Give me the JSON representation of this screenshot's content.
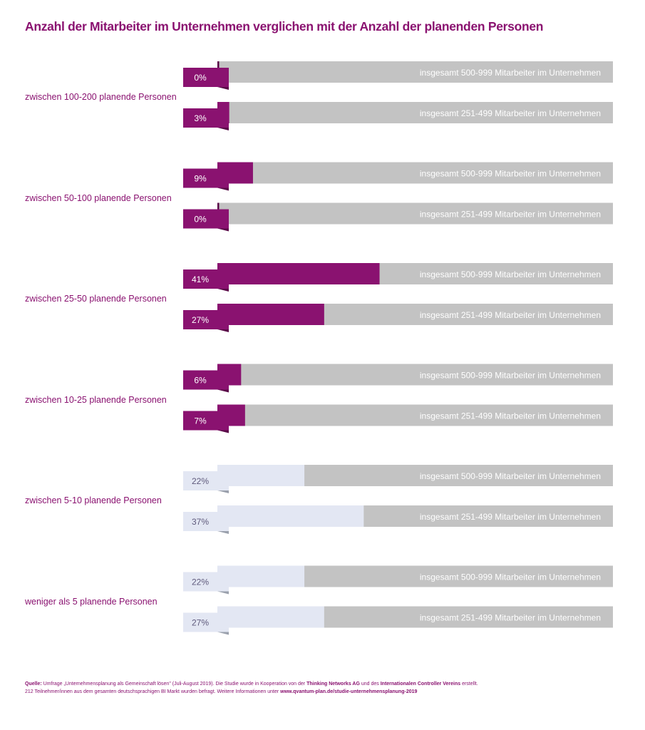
{
  "chart_data": {
    "type": "bar",
    "title": "Anzahl der Mitarbeiter im Unternehmen verglichen mit der Anzahl der planenden Personen",
    "xlim": [
      0,
      100
    ],
    "colors": {
      "highlight": "#8a1270",
      "highlight_dark": "#5a0a48",
      "muted": "#e3e7f3",
      "muted_fold": "#9aa0ac",
      "track": "#c3c3c3",
      "muted_text": "#5f5a7c"
    },
    "groups": [
      {
        "label": "zwischen 100-200 planende Personen",
        "highlight": true,
        "bars": [
          {
            "series": "insgesamt 500-999 Mitarbeiter im Unternehmen",
            "value": 0,
            "label": "0%"
          },
          {
            "series": "insgesamt 251-499 Mitarbeiter im Unternehmen",
            "value": 3,
            "label": "3%"
          }
        ]
      },
      {
        "label": "zwischen 50-100 planende Personen",
        "highlight": true,
        "bars": [
          {
            "series": "insgesamt 500-999 Mitarbeiter im Unternehmen",
            "value": 9,
            "label": "9%"
          },
          {
            "series": "insgesamt 251-499 Mitarbeiter im Unternehmen",
            "value": 0,
            "label": "0%"
          }
        ]
      },
      {
        "label": "zwischen 25-50 planende Personen",
        "highlight": true,
        "bars": [
          {
            "series": "insgesamt 500-999 Mitarbeiter im Unternehmen",
            "value": 41,
            "label": "41%"
          },
          {
            "series": "insgesamt 251-499 Mitarbeiter im Unternehmen",
            "value": 27,
            "label": "27%"
          }
        ]
      },
      {
        "label": "zwischen 10-25 planende Personen",
        "highlight": true,
        "bars": [
          {
            "series": "insgesamt 500-999 Mitarbeiter im Unternehmen",
            "value": 6,
            "label": "6%"
          },
          {
            "series": "insgesamt 251-499 Mitarbeiter im Unternehmen",
            "value": 7,
            "label": "7%"
          }
        ]
      },
      {
        "label": "zwischen 5-10 planende Personen",
        "highlight": false,
        "bars": [
          {
            "series": "insgesamt 500-999 Mitarbeiter im Unternehmen",
            "value": 22,
            "label": "22%"
          },
          {
            "series": "insgesamt 251-499 Mitarbeiter im Unternehmen",
            "value": 37,
            "label": "37%"
          }
        ]
      },
      {
        "label": "weniger als 5 planende Personen",
        "highlight": false,
        "bars": [
          {
            "series": "insgesamt 500-999 Mitarbeiter im Unternehmen",
            "value": 22,
            "label": "22%"
          },
          {
            "series": "insgesamt 251-499 Mitarbeiter im Unternehmen",
            "value": 27,
            "label": "27%"
          }
        ]
      }
    ]
  },
  "footer": {
    "source_label": "Quelle:",
    "source_text": " Umfrage „Unternehmensplanung als Gemeinschaft lösen\" (Juli-August 2019). Die Studie wurde in Kooperation von der ",
    "partner1": "Thinking Networks AG",
    "and_text": " und des ",
    "partner2": "Internationalen Controller Vereins",
    "end_text": " erstellt.",
    "line2_text": "212 Teilnehmer/innen aus dem gesamten deutschsprachigen BI Markt wurden befragt. Weitere Informationen unter ",
    "url": "www.qvantum-plan.de/studie-unternehmensplanung-2019"
  }
}
